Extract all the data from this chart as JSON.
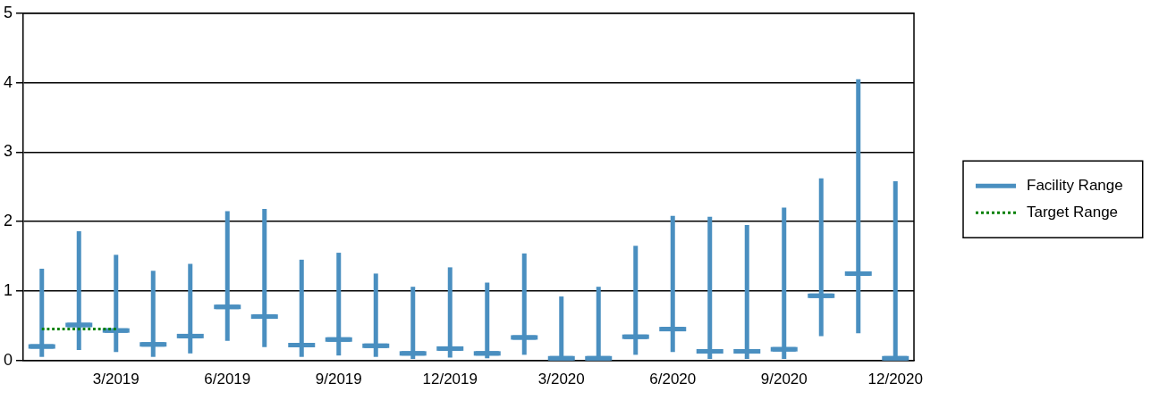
{
  "chart_data": {
    "type": "box",
    "categories": [
      null,
      null,
      "3/2019",
      null,
      null,
      "6/2019",
      null,
      null,
      "9/2019",
      null,
      null,
      "12/2019",
      null,
      null,
      "3/2020",
      null,
      null,
      "6/2020",
      null,
      null,
      "9/2020",
      null,
      null,
      "12/2020"
    ],
    "series": [
      {
        "name": "Facility Range",
        "color": "#4a8fc0",
        "boxes": [
          {
            "low": 0.05,
            "q1": 0.2,
            "median": 0.2,
            "q3": 0.2,
            "high": 1.32
          },
          {
            "low": 0.15,
            "q1": 0.51,
            "median": 0.51,
            "q3": 0.51,
            "high": 1.86
          },
          {
            "low": 0.12,
            "q1": 0.43,
            "median": 0.43,
            "q3": 0.43,
            "high": 1.52
          },
          {
            "low": 0.05,
            "q1": 0.23,
            "median": 0.23,
            "q3": 0.23,
            "high": 1.29
          },
          {
            "low": 0.1,
            "q1": 0.35,
            "median": 0.35,
            "q3": 0.35,
            "high": 1.39
          },
          {
            "low": 0.28,
            "q1": 0.77,
            "median": 0.77,
            "q3": 0.77,
            "high": 2.15
          },
          {
            "low": 0.19,
            "q1": 0.63,
            "median": 0.63,
            "q3": 0.63,
            "high": 2.18
          },
          {
            "low": 0.05,
            "q1": 0.22,
            "median": 0.22,
            "q3": 0.22,
            "high": 1.45
          },
          {
            "low": 0.07,
            "q1": 0.3,
            "median": 0.3,
            "q3": 0.3,
            "high": 1.55
          },
          {
            "low": 0.05,
            "q1": 0.21,
            "median": 0.21,
            "q3": 0.21,
            "high": 1.25
          },
          {
            "low": 0.02,
            "q1": 0.1,
            "median": 0.1,
            "q3": 0.1,
            "high": 1.06
          },
          {
            "low": 0.04,
            "q1": 0.17,
            "median": 0.17,
            "q3": 0.17,
            "high": 1.34
          },
          {
            "low": 0.03,
            "q1": 0.1,
            "median": 0.1,
            "q3": 0.1,
            "high": 1.12
          },
          {
            "low": 0.08,
            "q1": 0.33,
            "median": 0.33,
            "q3": 0.33,
            "high": 1.54
          },
          {
            "low": 0.02,
            "q1": 0.03,
            "median": 0.03,
            "q3": 0.03,
            "high": 0.92
          },
          {
            "low": 0.02,
            "q1": 0.03,
            "median": 0.03,
            "q3": 0.03,
            "high": 1.06
          },
          {
            "low": 0.08,
            "q1": 0.34,
            "median": 0.34,
            "q3": 0.34,
            "high": 1.65
          },
          {
            "low": 0.12,
            "q1": 0.45,
            "median": 0.45,
            "q3": 0.45,
            "high": 2.08
          },
          {
            "low": 0.02,
            "q1": 0.13,
            "median": 0.13,
            "q3": 0.13,
            "high": 2.07
          },
          {
            "low": 0.02,
            "q1": 0.13,
            "median": 0.13,
            "q3": 0.13,
            "high": 1.95
          },
          {
            "low": 0.02,
            "q1": 0.16,
            "median": 0.16,
            "q3": 0.16,
            "high": 2.2
          },
          {
            "low": 0.35,
            "q1": 0.93,
            "median": 0.93,
            "q3": 0.93,
            "high": 2.62
          },
          {
            "low": 0.39,
            "q1": 1.25,
            "median": 1.25,
            "q3": 1.25,
            "high": 4.05
          },
          {
            "low": 0.02,
            "q1": 0.03,
            "median": 0.03,
            "q3": 0.03,
            "high": 2.58
          }
        ]
      },
      {
        "name": "Target Range",
        "type": "line",
        "color": "#008000",
        "line_style": "dotted",
        "values": [
          0.45,
          0.45,
          0.45,
          null,
          null,
          null,
          null,
          null,
          null,
          null,
          null,
          null,
          null,
          null,
          null,
          null,
          null,
          null,
          null,
          null,
          null,
          null,
          null,
          null
        ]
      }
    ],
    "ylim": [
      0,
      5
    ],
    "yticks": [
      0,
      1,
      2,
      3,
      4,
      5
    ],
    "grid": "y",
    "legend": "right"
  }
}
